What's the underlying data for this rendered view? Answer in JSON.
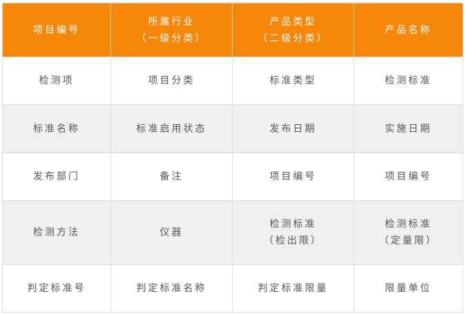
{
  "header": [
    [
      "项目编号"
    ],
    [
      "所属行业",
      "（一级分类）"
    ],
    [
      "产品类型",
      "（二级分类）"
    ],
    [
      "产品名称"
    ]
  ],
  "rows": [
    [
      [
        "检测项"
      ],
      [
        "项目分类"
      ],
      [
        "标准类型"
      ],
      [
        "检测标准"
      ]
    ],
    [
      [
        "标准名称"
      ],
      [
        "标准启用状态"
      ],
      [
        "发布日期"
      ],
      [
        "实施日期"
      ]
    ],
    [
      [
        "发布部门"
      ],
      [
        "备注"
      ],
      [
        "项目编号"
      ],
      [
        "项目编号"
      ]
    ],
    [
      [
        "检测方法"
      ],
      [
        "仪器"
      ],
      [
        "检测标准",
        "（检出限）"
      ],
      [
        "检测标准",
        "（定量限）"
      ]
    ],
    [
      [
        "判定标准号"
      ],
      [
        "判定标准名称"
      ],
      [
        "判定标准限量"
      ],
      [
        "限量单位"
      ]
    ]
  ],
  "colors": {
    "header_bg": "#f7870a",
    "alt_row_bg": "#f0f0f0",
    "border": "#e6d8d2"
  }
}
